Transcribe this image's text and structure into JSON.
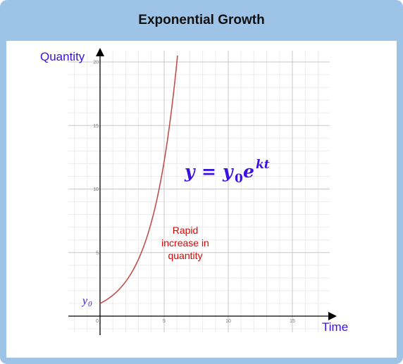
{
  "title": "Exponential Growth",
  "colors": {
    "frame": "#9dc3e6",
    "curve": "#c0504d",
    "label_blue": "#3b10e0",
    "annotation_red": "#e00000",
    "grid_major": "#c8c8c8",
    "grid_minor": "#ececec"
  },
  "chart_data": {
    "type": "line",
    "xlabel": "Time",
    "ylabel": "Quantity",
    "xlim": [
      -2.5,
      17.5
    ],
    "ylim": [
      -1.5,
      20.5
    ],
    "x_ticks": [
      "0",
      "5",
      "10",
      "15"
    ],
    "y_ticks": [
      "5",
      "10",
      "15",
      "20"
    ],
    "grid": true,
    "function": "y = y0 * e^(k t)",
    "y0": 1,
    "k": 0.5,
    "formula": {
      "y": "y",
      "eq": "=",
      "y0_base": "y",
      "y0_sub": "0",
      "e": "e",
      "exp": "kt"
    },
    "y0_label": {
      "base": "y",
      "sub": "0"
    },
    "annotation": [
      "Rapid",
      "increase in",
      "quantity"
    ]
  }
}
